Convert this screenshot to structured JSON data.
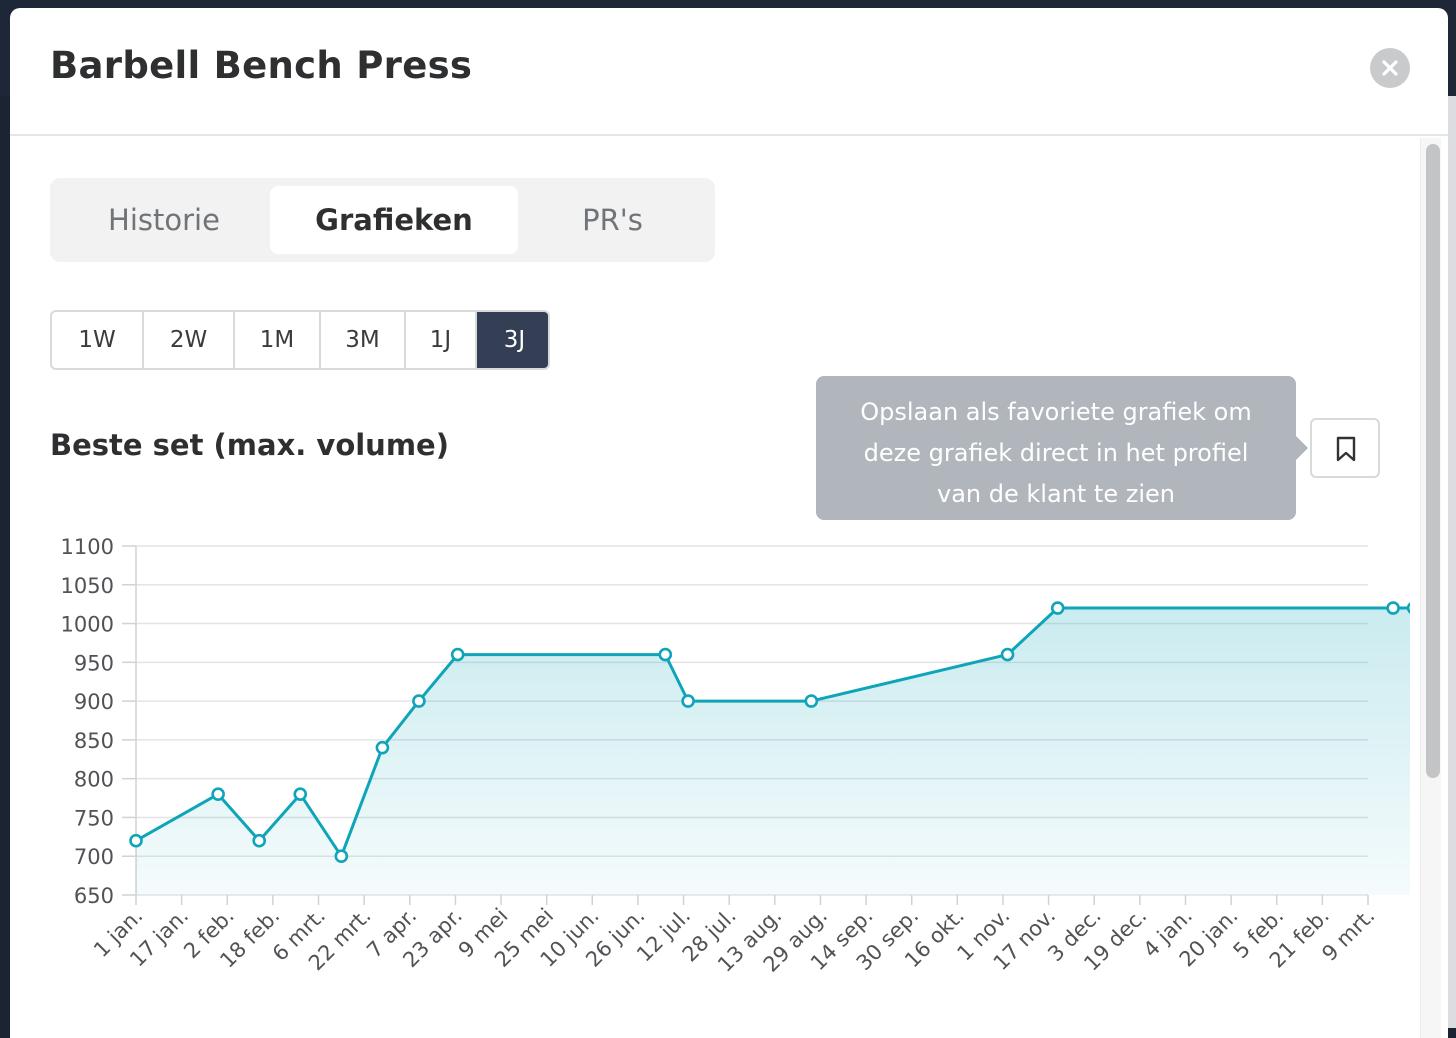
{
  "modal": {
    "title": "Barbell Bench Press"
  },
  "tabs": [
    {
      "label": "Historie",
      "active": false
    },
    {
      "label": "Grafieken",
      "active": true
    },
    {
      "label": "PR's",
      "active": false
    }
  ],
  "ranges": [
    {
      "label": "1W",
      "active": false
    },
    {
      "label": "2W",
      "active": false
    },
    {
      "label": "1M",
      "active": false
    },
    {
      "label": "3M",
      "active": false
    },
    {
      "label": "1J",
      "active": false
    },
    {
      "label": "3J",
      "active": true
    }
  ],
  "chart_section": {
    "title": "Beste set (max. volume)",
    "tooltip_lines": [
      "Opslaan als favoriete grafiek om",
      "deze grafiek direct in het profiel",
      "van de klant te zien"
    ]
  },
  "icons": {
    "close": "close-icon",
    "bookmark": "bookmark-icon"
  },
  "colors": {
    "line": "#0ea5b9",
    "active_range": "#343f55",
    "tooltip": "#b1b5bc"
  },
  "chart_data": {
    "type": "line",
    "title": "Beste set (max. volume)",
    "xlabel": "",
    "ylabel": "",
    "ylim": [
      650,
      1100
    ],
    "yticks": [
      650,
      700,
      750,
      800,
      850,
      900,
      950,
      1000,
      1050,
      1100
    ],
    "x_ticks": [
      "1 jan.",
      "17 jan.",
      "2 feb.",
      "18 feb.",
      "6 mrt.",
      "22 mrt.",
      "7 apr.",
      "23 apr.",
      "9 mei",
      "25 mei",
      "10 jun.",
      "26 jun.",
      "12 jul.",
      "28 jul.",
      "13 aug.",
      "29 aug.",
      "14 sep.",
      "30 sep.",
      "16 okt.",
      "1 nov.",
      "17 nov.",
      "3 dec.",
      "19 dec.",
      "4 jan.",
      "20 jan.",
      "5 feb.",
      "21 feb.",
      "9 mrt."
    ],
    "grid": true,
    "area_fill": true,
    "series": [
      {
        "points": [
          {
            "x": 0,
            "y": 720
          },
          {
            "x": 1.8,
            "y": 780
          },
          {
            "x": 2.7,
            "y": 720
          },
          {
            "x": 3.6,
            "y": 780
          },
          {
            "x": 4.5,
            "y": 700
          },
          {
            "x": 5.4,
            "y": 840
          },
          {
            "x": 6.2,
            "y": 900
          },
          {
            "x": 7.05,
            "y": 960
          },
          {
            "x": 11.6,
            "y": 960
          },
          {
            "x": 12.1,
            "y": 900
          },
          {
            "x": 14.8,
            "y": 900
          },
          {
            "x": 19.1,
            "y": 960
          },
          {
            "x": 20.2,
            "y": 1020
          },
          {
            "x": 27.55,
            "y": 1020
          },
          {
            "x": 28,
            "y": 1020
          }
        ]
      }
    ]
  }
}
